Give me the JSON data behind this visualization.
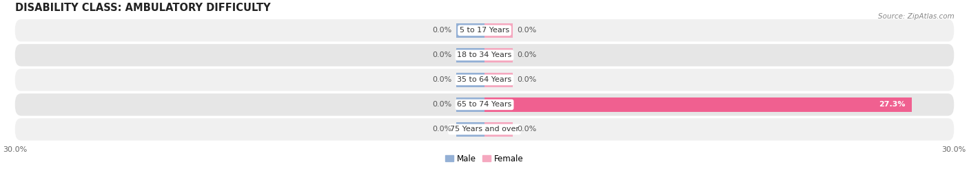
{
  "title": "DISABILITY CLASS: AMBULATORY DIFFICULTY",
  "source": "Source: ZipAtlas.com",
  "categories": [
    "5 to 17 Years",
    "18 to 34 Years",
    "35 to 64 Years",
    "65 to 74 Years",
    "75 Years and over"
  ],
  "male_values": [
    0.0,
    0.0,
    0.0,
    0.0,
    0.0
  ],
  "female_values": [
    0.0,
    0.0,
    0.0,
    27.3,
    0.0
  ],
  "xlim": [
    -30,
    30
  ],
  "male_color": "#94b0d5",
  "female_color_normal": "#f5a8bf",
  "female_color_highlight": "#f06090",
  "row_bg_even": "#f0f0f0",
  "row_bg_odd": "#e6e6e6",
  "row_border_color": "#d0d0d0",
  "title_fontsize": 10.5,
  "label_fontsize": 8,
  "category_fontsize": 8,
  "tick_fontsize": 8,
  "source_fontsize": 7.5,
  "bar_height": 0.6
}
